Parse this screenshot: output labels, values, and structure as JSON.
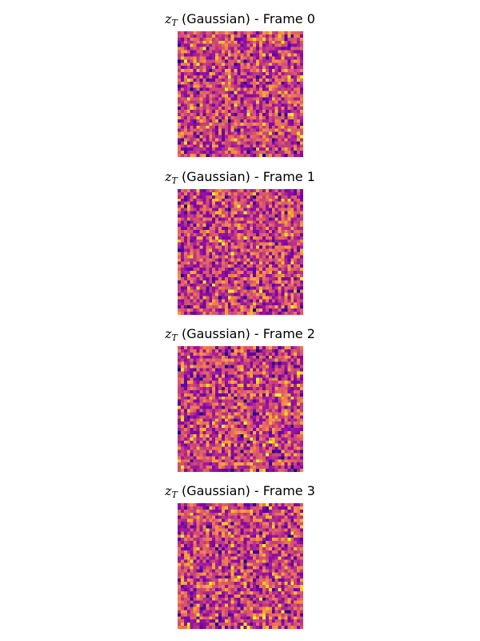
{
  "chart_data": [
    {
      "type": "heatmap",
      "variable": "z",
      "subscript": "T",
      "title_suffix": " (Gaussian) - Frame 0",
      "frame": 0,
      "grid_size": 40,
      "colormap": "plasma",
      "axes_visible": false,
      "seed": 12345
    },
    {
      "type": "heatmap",
      "variable": "z",
      "subscript": "T",
      "title_suffix": " (Gaussian) - Frame 1",
      "frame": 1,
      "grid_size": 40,
      "colormap": "plasma",
      "axes_visible": false,
      "seed": 23456
    },
    {
      "type": "heatmap",
      "variable": "z",
      "subscript": "T",
      "title_suffix": " (Gaussian) - Frame 2",
      "frame": 2,
      "grid_size": 40,
      "colormap": "plasma",
      "axes_visible": false,
      "seed": 34567
    },
    {
      "type": "heatmap",
      "variable": "z",
      "subscript": "T",
      "title_suffix": " (Gaussian) - Frame 3",
      "frame": 3,
      "grid_size": 40,
      "colormap": "plasma",
      "axes_visible": false,
      "seed": 45678
    }
  ]
}
